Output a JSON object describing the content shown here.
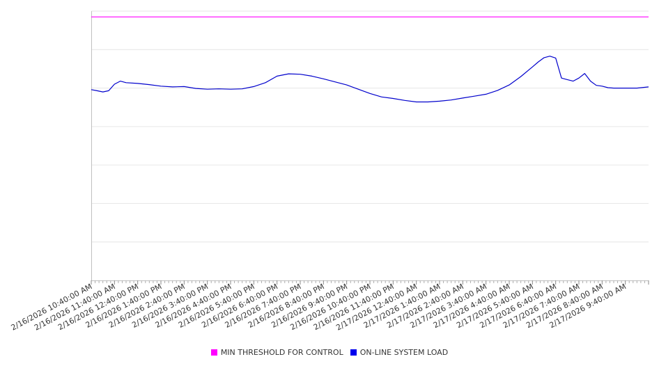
{
  "chart_data": {
    "type": "line",
    "title": "",
    "xlabel": "",
    "ylabel": "",
    "ylim": [
      0,
      7
    ],
    "grid": true,
    "legend_position": "bottom",
    "x_tick_labels": [
      "2/16/2026 10:40:00 AM",
      "2/16/2026 11:40:00 AM",
      "2/16/2026 12:40:00 PM",
      "2/16/2026 1:40:00 PM",
      "2/16/2026 2:40:00 PM",
      "2/16/2026 3:40:00 PM",
      "2/16/2026 4:40:00 PM",
      "2/16/2026 5:40:00 PM",
      "2/16/2026 6:40:00 PM",
      "2/16/2026 7:40:00 PM",
      "2/16/2026 8:40:00 PM",
      "2/16/2026 9:40:00 PM",
      "2/16/2026 10:40:00 PM",
      "2/16/2026 11:40:00 PM",
      "2/17/2026 12:40:00 AM",
      "2/17/2026 1:40:00 AM",
      "2/17/2026 2:40:00 AM",
      "2/17/2026 3:40:00 AM",
      "2/17/2026 4:40:00 AM",
      "2/17/2026 5:40:00 AM",
      "2/17/2026 6:40:00 AM",
      "2/17/2026 7:40:00 AM",
      "2/17/2026 8:40:00 AM",
      "2/17/2026 9:40:00 AM"
    ],
    "x_hours": [
      0,
      0.25,
      0.5,
      0.75,
      1,
      1.25,
      1.5,
      2,
      2.5,
      3,
      3.5,
      4,
      4.5,
      5,
      5.5,
      6,
      6.5,
      7,
      7.5,
      8,
      8.5,
      9,
      9.5,
      10,
      10.5,
      11,
      11.5,
      12,
      12.5,
      13,
      13.5,
      14,
      14.5,
      15,
      15.5,
      16,
      16.5,
      17,
      17.5,
      18,
      18.5,
      19,
      19.25,
      19.5,
      19.75,
      20,
      20.25,
      20.5,
      20.75,
      21,
      21.25,
      21.5,
      21.75,
      22,
      22.25,
      22.5,
      22.75,
      23,
      23.5,
      24
    ],
    "series": [
      {
        "name": "MIN THRESHOLD FOR CONTROL",
        "color": "#ff00ff",
        "values": [
          6.85,
          6.85,
          6.85,
          6.85,
          6.85,
          6.85,
          6.85,
          6.85,
          6.85,
          6.85,
          6.85,
          6.85,
          6.85,
          6.85,
          6.85,
          6.85,
          6.85,
          6.85,
          6.85,
          6.85,
          6.85,
          6.85,
          6.85,
          6.85,
          6.85,
          6.85,
          6.85,
          6.85,
          6.85,
          6.85,
          6.85,
          6.85,
          6.85,
          6.85,
          6.85,
          6.85,
          6.85,
          6.85,
          6.85,
          6.85,
          6.85,
          6.85,
          6.85,
          6.85,
          6.85,
          6.85,
          6.85,
          6.85,
          6.85,
          6.85,
          6.85,
          6.85,
          6.85,
          6.85,
          6.85,
          6.85,
          6.85,
          6.85,
          6.85,
          6.85
        ]
      },
      {
        "name": "ON-LINE SYSTEM LOAD",
        "color": "#0000cc",
        "values": [
          4.96,
          4.93,
          4.9,
          4.93,
          5.1,
          5.18,
          5.14,
          5.12,
          5.09,
          5.05,
          5.03,
          5.04,
          4.99,
          4.97,
          4.98,
          4.97,
          4.98,
          5.04,
          5.14,
          5.31,
          5.37,
          5.36,
          5.31,
          5.24,
          5.16,
          5.08,
          4.97,
          4.86,
          4.77,
          4.73,
          4.68,
          4.64,
          4.64,
          4.66,
          4.69,
          4.74,
          4.79,
          4.84,
          4.94,
          5.08,
          5.3,
          5.55,
          5.68,
          5.79,
          5.83,
          5.78,
          5.26,
          5.22,
          5.18,
          5.26,
          5.38,
          5.18,
          5.07,
          5.05,
          5.01,
          5.0,
          5.0,
          5.0,
          5.0,
          5.03
        ]
      }
    ]
  }
}
